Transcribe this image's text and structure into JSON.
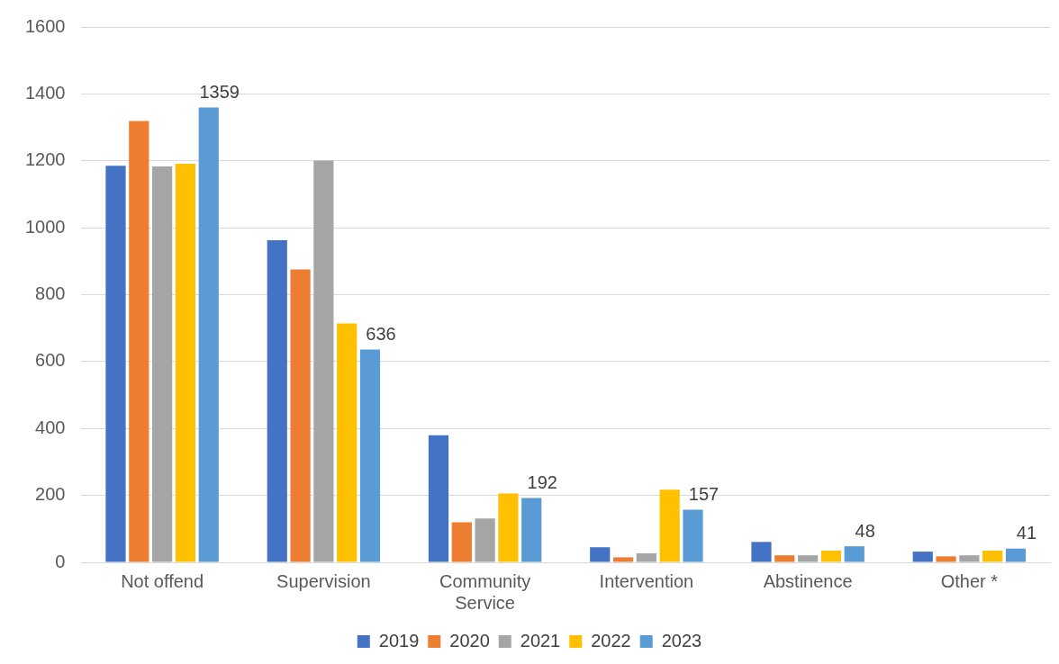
{
  "chart_data": {
    "type": "bar",
    "categories": [
      "Not offend",
      "Supervision",
      "Community Service",
      "Intervention",
      "Abstinence",
      "Other *"
    ],
    "series": [
      {
        "name": "2019",
        "color": "#4472c4",
        "values": [
          1185,
          963,
          380,
          45,
          61,
          32
        ]
      },
      {
        "name": "2020",
        "color": "#ed7d31",
        "values": [
          1319,
          875,
          120,
          15,
          21,
          18
        ]
      },
      {
        "name": "2021",
        "color": "#a5a5a5",
        "values": [
          1183,
          1201,
          131,
          27,
          21,
          21
        ]
      },
      {
        "name": "2022",
        "color": "#ffc000",
        "values": [
          1191,
          714,
          206,
          217,
          35,
          35
        ]
      },
      {
        "name": "2023",
        "color": "#5b9bd5",
        "values": [
          1359,
          636,
          192,
          157,
          48,
          41
        ],
        "value_labels": [
          "1359",
          "636",
          "192",
          "157",
          "48",
          "41"
        ]
      }
    ],
    "ylim": [
      0,
      1600
    ],
    "yticks": [
      0,
      200,
      400,
      600,
      800,
      1000,
      1200,
      1400,
      1600
    ],
    "grid": "y",
    "legend": "bottom"
  }
}
